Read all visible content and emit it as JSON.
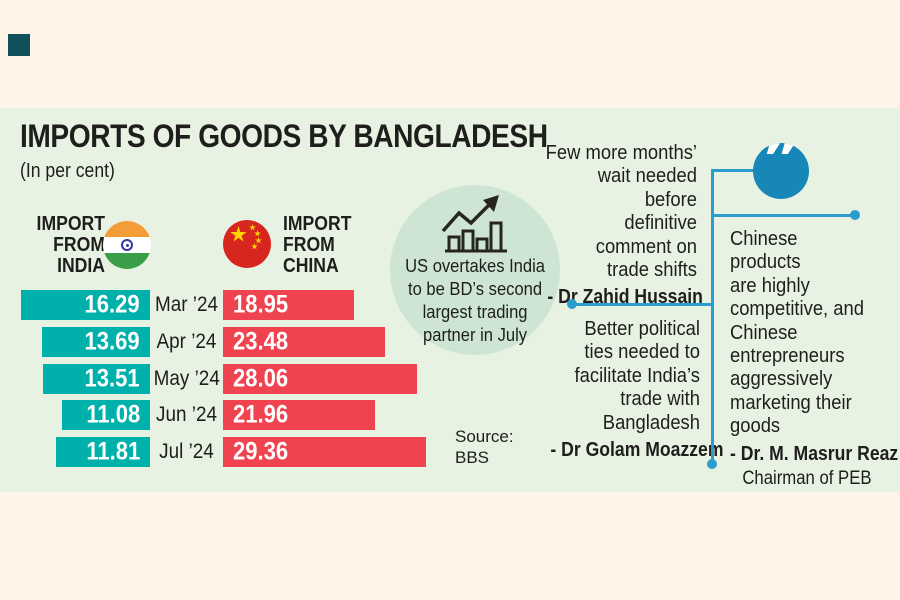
{
  "colors": {
    "page_bg": "#fef4e7",
    "panel_bg": "#e8f2e3",
    "corner_square": "#10505a",
    "india_bar": "#00b1ab",
    "china_bar": "#f04350",
    "badge_bg": "#cde5d2",
    "text_dark": "#1e1e1c",
    "connector_blue": "#2a9cce",
    "quote_circle_blue": "#1787b8",
    "china_flag_red": "#d7261e",
    "china_flag_star": "#ffd400",
    "india_flag_saffron": "#f49c38",
    "india_flag_green": "#3a9e49"
  },
  "header": {
    "title": "IMPORTS OF GOODS BY BANGLADESH",
    "subtitle": "(In per cent)"
  },
  "chart_data": {
    "type": "bar",
    "title": "IMPORTS OF GOODS BY BANGLADESH",
    "unit": "In per cent",
    "orientation": "horizontal-mirrored",
    "categories": [
      "Mar ’24",
      "Apr ’24",
      "May ’24",
      "Jun ’24",
      "Jul ’24"
    ],
    "series": [
      {
        "name": "IMPORT FROM INDIA",
        "color": "#00b1ab",
        "values": [
          16.29,
          13.69,
          13.51,
          11.08,
          11.81
        ]
      },
      {
        "name": "IMPORT FROM CHINA",
        "color": "#f04350",
        "values": [
          18.95,
          23.48,
          28.06,
          21.96,
          29.36
        ]
      }
    ],
    "source": "Source: BBS"
  },
  "badge": {
    "text": "US overtakes India\nto be BD’s second\nlargest trading\npartner in July",
    "icon": "bar-growth-icon"
  },
  "source_block": {
    "text": "Source:\nBBS"
  },
  "quotes": [
    {
      "text": "Few more months’\nwait needed before\ndefinitive\ncomment on\ntrade shifts",
      "author": "- Dr Zahid Hussain"
    },
    {
      "text": "Better political\nties needed to\nfacilitate India’s\ntrade with\nBangladesh",
      "author": "- Dr Golam Moazzem"
    },
    {
      "text": "Chinese products\nare highly\ncompetitive, and\nChinese\nentrepreneurs\naggressively\nmarketing their\ngoods",
      "author": "- Dr. M. Masrur Reaz",
      "author_title": "Chairman of PEB"
    }
  ],
  "quote_icon_glyph": "”"
}
